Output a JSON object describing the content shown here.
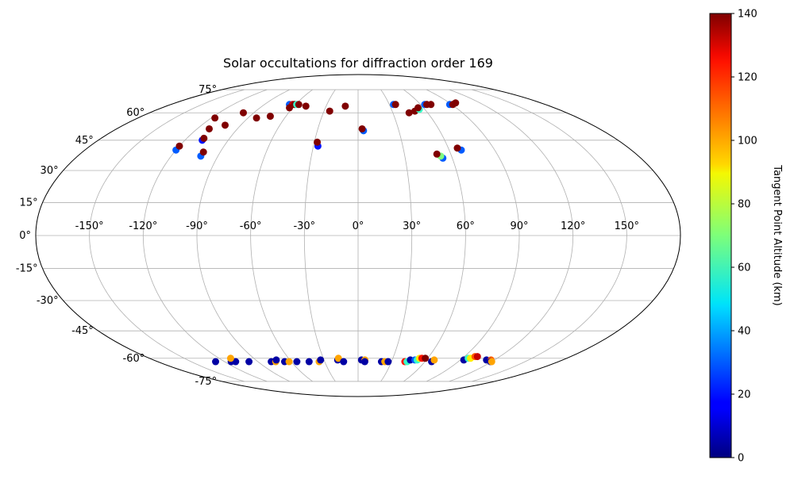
{
  "chart_data": {
    "type": "scatter",
    "projection": "mollweide",
    "title": "Solar occultations for diffraction order 169",
    "grid": true,
    "lon_ticks": [
      {
        "value": -150,
        "label": "-150°"
      },
      {
        "value": -120,
        "label": "-120°"
      },
      {
        "value": -90,
        "label": "-90°"
      },
      {
        "value": -60,
        "label": "-60°"
      },
      {
        "value": -30,
        "label": "-30°"
      },
      {
        "value": 0,
        "label": "0°"
      },
      {
        "value": 30,
        "label": "30°"
      },
      {
        "value": 60,
        "label": "60°"
      },
      {
        "value": 90,
        "label": "90°"
      },
      {
        "value": 120,
        "label": "120°"
      },
      {
        "value": 150,
        "label": "150°"
      }
    ],
    "lat_ticks": [
      {
        "value": 75,
        "label": "75°"
      },
      {
        "value": 60,
        "label": "60°"
      },
      {
        "value": 45,
        "label": "45°"
      },
      {
        "value": 30,
        "label": "30°"
      },
      {
        "value": 15,
        "label": "15°"
      },
      {
        "value": 0,
        "label": "0°"
      },
      {
        "value": -15,
        "label": "-15°"
      },
      {
        "value": -30,
        "label": "-30°"
      },
      {
        "value": -45,
        "label": "-45°"
      },
      {
        "value": -60,
        "label": "-60°"
      },
      {
        "value": -75,
        "label": "-75°"
      }
    ],
    "colorbar": {
      "label": "Tangent Point Altitude (km)",
      "colormap": "jet",
      "min": 0,
      "max": 140,
      "ticks": [
        0,
        20,
        40,
        60,
        80,
        100,
        120,
        140
      ]
    },
    "points": [
      {
        "lon": -117,
        "lat": 57,
        "alt": 140
      },
      {
        "lon": -111,
        "lat": 51,
        "alt": 140
      },
      {
        "lon": -99,
        "lat": 60,
        "alt": 140
      },
      {
        "lon": -102,
        "lat": 53,
        "alt": 140
      },
      {
        "lon": -108,
        "lat": 45,
        "alt": 20
      },
      {
        "lon": -108,
        "lat": 46,
        "alt": 140
      },
      {
        "lon": -120,
        "lat": 40,
        "alt": 30
      },
      {
        "lon": -120,
        "lat": 42,
        "alt": 140
      },
      {
        "lon": -101,
        "lat": 37,
        "alt": 30
      },
      {
        "lon": -101,
        "lat": 39,
        "alt": 140
      },
      {
        "lon": -83,
        "lat": 57,
        "alt": 140
      },
      {
        "lon": -73,
        "lat": 58,
        "alt": 140
      },
      {
        "lon": -66,
        "lat": 65,
        "alt": 30
      },
      {
        "lon": -63,
        "lat": 65,
        "alt": 130
      },
      {
        "lon": -61,
        "lat": 65,
        "alt": 140
      },
      {
        "lon": -59,
        "lat": 65,
        "alt": 60
      },
      {
        "lon": -57,
        "lat": 65,
        "alt": 140
      },
      {
        "lon": -63,
        "lat": 63,
        "alt": 140
      },
      {
        "lon": -49,
        "lat": 64,
        "alt": 140
      },
      {
        "lon": -25,
        "lat": 61,
        "alt": 140
      },
      {
        "lon": -12,
        "lat": 64,
        "alt": 140
      },
      {
        "lon": -27,
        "lat": 42,
        "alt": 20
      },
      {
        "lon": -28,
        "lat": 44,
        "alt": 140
      },
      {
        "lon": 4,
        "lat": 50,
        "alt": 30
      },
      {
        "lon": 3,
        "lat": 51,
        "alt": 140
      },
      {
        "lon": 34,
        "lat": 65,
        "alt": 30
      },
      {
        "lon": 36,
        "lat": 65,
        "alt": 140
      },
      {
        "lon": 44,
        "lat": 60,
        "alt": 140
      },
      {
        "lon": 50,
        "lat": 61,
        "alt": 140
      },
      {
        "lon": 55,
        "lat": 62,
        "alt": 60
      },
      {
        "lon": 55,
        "lat": 63,
        "alt": 140
      },
      {
        "lon": 64,
        "lat": 65,
        "alt": 30
      },
      {
        "lon": 66,
        "lat": 65,
        "alt": 140
      },
      {
        "lon": 70,
        "lat": 65,
        "alt": 140
      },
      {
        "lon": 88,
        "lat": 65,
        "alt": 30
      },
      {
        "lon": 91,
        "lat": 65,
        "alt": 140
      },
      {
        "lon": 96,
        "lat": 66,
        "alt": 140
      },
      {
        "lon": 54,
        "lat": 36,
        "alt": 30
      },
      {
        "lon": 53,
        "lat": 37,
        "alt": 70
      },
      {
        "lon": 51,
        "lat": 38,
        "alt": 140
      },
      {
        "lon": 68,
        "lat": 40,
        "alt": 30
      },
      {
        "lon": 66,
        "lat": 41,
        "alt": 140
      },
      {
        "lon": -128,
        "lat": -62,
        "alt": 5
      },
      {
        "lon": -114,
        "lat": -62,
        "alt": 5
      },
      {
        "lon": -110,
        "lat": -62,
        "alt": 5
      },
      {
        "lon": -110,
        "lat": -60,
        "alt": 100
      },
      {
        "lon": -98,
        "lat": -62,
        "alt": 5
      },
      {
        "lon": -78,
        "lat": -62,
        "alt": 5
      },
      {
        "lon": -74,
        "lat": -62,
        "alt": 100
      },
      {
        "lon": -72,
        "lat": -61,
        "alt": 5
      },
      {
        "lon": -66,
        "lat": -62,
        "alt": 5
      },
      {
        "lon": -62,
        "lat": -62,
        "alt": 100
      },
      {
        "lon": -55,
        "lat": -62,
        "alt": 5
      },
      {
        "lon": -44,
        "lat": -62,
        "alt": 5
      },
      {
        "lon": -35,
        "lat": -62,
        "alt": 100
      },
      {
        "lon": -33,
        "lat": -61,
        "alt": 5
      },
      {
        "lon": -18,
        "lat": -61,
        "alt": 5
      },
      {
        "lon": -17,
        "lat": -60,
        "alt": 100
      },
      {
        "lon": -13,
        "lat": -62,
        "alt": 5
      },
      {
        "lon": 3,
        "lat": -61,
        "alt": 5
      },
      {
        "lon": 6,
        "lat": -61,
        "alt": 100
      },
      {
        "lon": 6,
        "lat": -62,
        "alt": 5
      },
      {
        "lon": 21,
        "lat": -62,
        "alt": 5
      },
      {
        "lon": 24,
        "lat": -62,
        "alt": 100
      },
      {
        "lon": 27,
        "lat": -62,
        "alt": 5
      },
      {
        "lon": 42,
        "lat": -62,
        "alt": 120
      },
      {
        "lon": 44,
        "lat": -62,
        "alt": 60
      },
      {
        "lon": 46,
        "lat": -61,
        "alt": 5
      },
      {
        "lon": 50,
        "lat": -61,
        "alt": 30
      },
      {
        "lon": 52,
        "lat": -61,
        "alt": 60
      },
      {
        "lon": 53,
        "lat": -60,
        "alt": 90
      },
      {
        "lon": 55,
        "lat": -60,
        "alt": 120
      },
      {
        "lon": 58,
        "lat": -60,
        "alt": 140
      },
      {
        "lon": 66,
        "lat": -62,
        "alt": 5
      },
      {
        "lon": 67,
        "lat": -61,
        "alt": 100
      },
      {
        "lon": 93,
        "lat": -61,
        "alt": 5
      },
      {
        "lon": 95,
        "lat": -60,
        "alt": 60
      },
      {
        "lon": 97,
        "lat": -60,
        "alt": 90
      },
      {
        "lon": 99,
        "lat": -59,
        "alt": 110
      },
      {
        "lon": 101,
        "lat": -59,
        "alt": 130
      },
      {
        "lon": 113,
        "lat": -61,
        "alt": 5
      },
      {
        "lon": 117,
        "lat": -61,
        "alt": 110
      },
      {
        "lon": 119,
        "lat": -62,
        "alt": 5
      },
      {
        "lon": 120,
        "lat": -62,
        "alt": 100
      }
    ]
  }
}
